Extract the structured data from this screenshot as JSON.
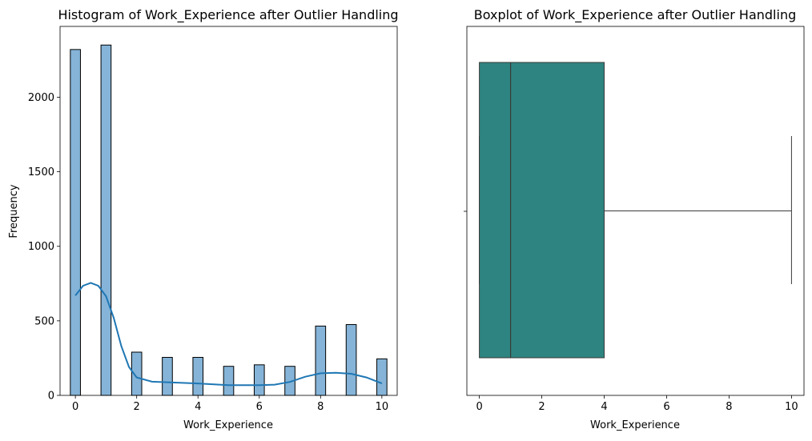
{
  "chart_data": [
    {
      "type": "bar",
      "subtype": "histogram",
      "title": "Histogram of Work_Experience after Outlier Handling",
      "xlabel": "Work_Experience",
      "ylabel": "Frequency",
      "xlim": [
        -0.5,
        10.5
      ],
      "ylim": [
        0,
        2475
      ],
      "x_ticks": [
        "0",
        "2",
        "4",
        "6",
        "8",
        "10"
      ],
      "y_ticks": [
        "0",
        "500",
        "1000",
        "1500",
        "2000"
      ],
      "bars": [
        {
          "x": 0,
          "value": 2320
        },
        {
          "x": 1,
          "value": 2350
        },
        {
          "x": 2,
          "value": 290
        },
        {
          "x": 3,
          "value": 255
        },
        {
          "x": 4,
          "value": 255
        },
        {
          "x": 5,
          "value": 195
        },
        {
          "x": 6,
          "value": 205
        },
        {
          "x": 7,
          "value": 195
        },
        {
          "x": 8,
          "value": 465
        },
        {
          "x": 9,
          "value": 475
        },
        {
          "x": 10,
          "value": 245
        }
      ],
      "kde": {
        "x": [
          0,
          0.25,
          0.5,
          0.75,
          1,
          1.25,
          1.5,
          1.75,
          2,
          2.5,
          3,
          4,
          5,
          6,
          6.5,
          7,
          7.5,
          8,
          8.5,
          9,
          9.5,
          10
        ],
        "y": [
          670,
          735,
          755,
          735,
          665,
          520,
          330,
          190,
          120,
          92,
          88,
          80,
          68,
          68,
          72,
          90,
          125,
          148,
          152,
          145,
          120,
          80
        ]
      },
      "bar_color": "#85b4d8",
      "kde_color": "#1f77b4",
      "grid": false
    },
    {
      "type": "boxplot",
      "title": "Boxplot of Work_Experience after Outlier Handling",
      "xlabel": "Work_Experience",
      "xlim": [
        -0.4,
        10.4
      ],
      "x_ticks": [
        "0",
        "2",
        "4",
        "6",
        "8",
        "10"
      ],
      "min": 0,
      "q1": 0,
      "median": 1,
      "q3": 4,
      "max": 10,
      "box_color": "#2e8480",
      "grid": false
    }
  ]
}
